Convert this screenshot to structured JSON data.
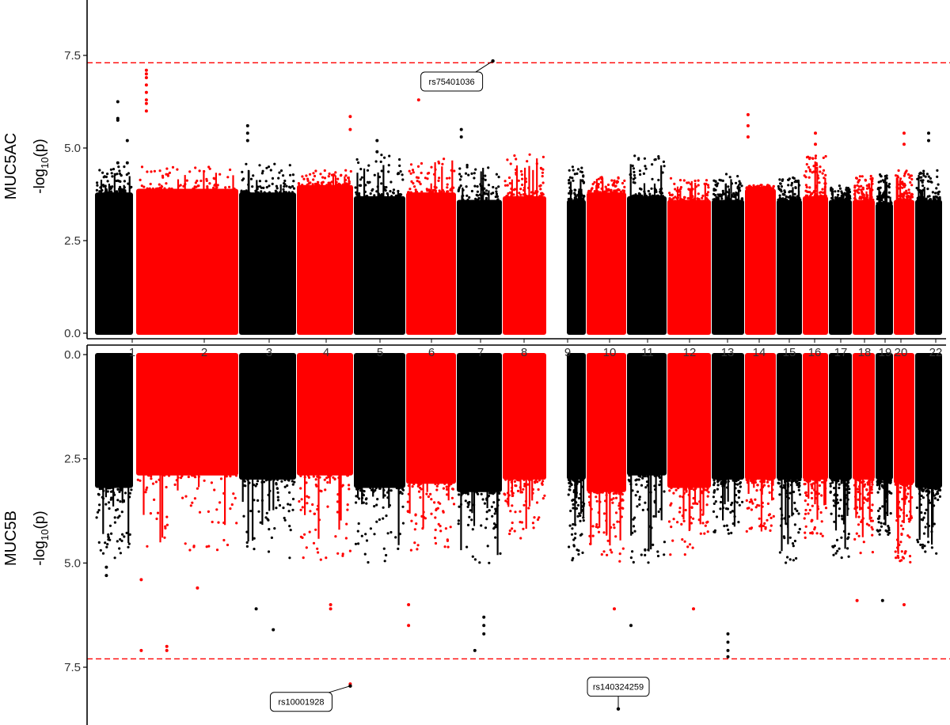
{
  "chart_data": {
    "type": "scatter",
    "subtype": "miami-manhattan",
    "colors": {
      "odd_chromosomes": "#000000",
      "even_chromosomes": "#ff0000",
      "threshold": "#ff0000"
    },
    "chromosomes": [
      "1",
      "2",
      "3",
      "4",
      "5",
      "6",
      "7",
      "8",
      "9",
      "10",
      "11",
      "12",
      "13",
      "14",
      "15",
      "16",
      "17",
      "18",
      "19",
      "20",
      "22"
    ],
    "significance_threshold": 7.3,
    "panels": [
      {
        "name": "MUC5AC",
        "ylabel_prefix": "-log",
        "ylabel_sub": "10",
        "ylabel_suffix": "(p)",
        "orientation": "up",
        "ylim": [
          0,
          9
        ],
        "yticks": [
          "0.0",
          "2.5",
          "5.0",
          "7.5"
        ],
        "background_top": [
          3.8,
          3.9,
          3.8,
          4.0,
          3.7,
          3.8,
          3.6,
          3.7,
          3.6,
          3.8,
          3.7,
          3.6,
          3.6,
          3.9,
          3.6,
          3.7,
          3.6,
          3.6,
          3.5,
          3.6,
          3.6
        ],
        "background_max": [
          4.5,
          4.5,
          4.6,
          4.4,
          4.9,
          4.8,
          4.6,
          4.9,
          4.5,
          4.3,
          4.8,
          4.2,
          4.3,
          4.0,
          4.2,
          4.8,
          4.0,
          4.3,
          4.3,
          4.4,
          4.4
        ],
        "peaks": [
          {
            "chr": "1",
            "pos": 0.6,
            "values": [
              6.25,
              5.8,
              5.75,
              4.6
            ]
          },
          {
            "chr": "1",
            "pos": 0.85,
            "values": [
              5.2,
              4.6
            ]
          },
          {
            "chr": "2",
            "pos": 0.1,
            "values": [
              7.1,
              7.0,
              6.9,
              6.7,
              6.5,
              6.3,
              6.2,
              6.0
            ]
          },
          {
            "chr": "3",
            "pos": 0.15,
            "values": [
              5.6,
              5.4,
              5.2
            ]
          },
          {
            "chr": "4",
            "pos": 0.95,
            "values": [
              5.85,
              5.5
            ]
          },
          {
            "chr": "5",
            "pos": 0.45,
            "values": [
              5.2,
              4.9
            ]
          },
          {
            "chr": "6",
            "pos": 0.25,
            "values": [
              6.3
            ]
          },
          {
            "chr": "7",
            "pos": 0.8,
            "values": [
              7.35
            ]
          },
          {
            "chr": "7",
            "pos": 0.1,
            "values": [
              5.5,
              5.3
            ]
          },
          {
            "chr": "14",
            "pos": 0.1,
            "values": [
              5.9,
              5.6,
              5.3
            ]
          },
          {
            "chr": "16",
            "pos": 0.5,
            "values": [
              5.4,
              5.1
            ]
          },
          {
            "chr": "20",
            "pos": 0.5,
            "values": [
              5.4,
              5.1
            ]
          },
          {
            "chr": "22",
            "pos": 0.5,
            "values": [
              5.4,
              5.2
            ]
          }
        ],
        "annotations": [
          {
            "label": "rs75401036",
            "chr": "7",
            "pos": 0.8,
            "value": 7.35
          }
        ]
      },
      {
        "name": "MUC5B",
        "ylabel_prefix": "-log",
        "ylabel_sub": "10",
        "ylabel_suffix": "(p)",
        "orientation": "down",
        "ylim": [
          0,
          9
        ],
        "yticks": [
          "0.0",
          "2.5",
          "5.0",
          "7.5"
        ],
        "background_top": [
          3.2,
          2.9,
          3.0,
          2.9,
          3.2,
          3.1,
          3.3,
          3.0,
          3.0,
          3.3,
          2.9,
          3.2,
          3.0,
          3.0,
          3.0,
          3.0,
          3.0,
          3.0,
          3.0,
          3.1,
          3.2
        ],
        "background_max": [
          4.9,
          4.7,
          4.9,
          5.0,
          5.0,
          4.8,
          5.0,
          4.6,
          5.0,
          5.0,
          5.0,
          4.8,
          4.3,
          4.4,
          5.0,
          4.4,
          4.9,
          4.8,
          4.4,
          5.0,
          4.8
        ],
        "peaks": [
          {
            "chr": "1",
            "pos": 0.3,
            "values": [
              5.3,
              5.1
            ]
          },
          {
            "chr": "2",
            "pos": 0.05,
            "values": [
              7.1,
              5.4
            ]
          },
          {
            "chr": "2",
            "pos": 0.3,
            "values": [
              7.1,
              7.0
            ]
          },
          {
            "chr": "2",
            "pos": 0.6,
            "values": [
              5.6
            ]
          },
          {
            "chr": "3",
            "pos": 0.3,
            "values": [
              6.1
            ]
          },
          {
            "chr": "3",
            "pos": 0.6,
            "values": [
              6.6
            ]
          },
          {
            "chr": "4",
            "pos": 0.95,
            "values": [
              7.95,
              7.9
            ]
          },
          {
            "chr": "4",
            "pos": 0.6,
            "values": [
              6.1,
              6.0
            ]
          },
          {
            "chr": "6",
            "pos": 0.05,
            "values": [
              6.5,
              6.0
            ]
          },
          {
            "chr": "7",
            "pos": 0.4,
            "values": [
              7.1
            ]
          },
          {
            "chr": "7",
            "pos": 0.6,
            "values": [
              6.7,
              6.5,
              6.3
            ]
          },
          {
            "chr": "10",
            "pos": 0.7,
            "values": [
              6.1
            ]
          },
          {
            "chr": "11",
            "pos": 0.1,
            "values": [
              6.5
            ]
          },
          {
            "chr": "12",
            "pos": 0.6,
            "values": [
              6.1
            ]
          },
          {
            "chr": "13",
            "pos": 0.5,
            "values": [
              7.25,
              7.1,
              6.9,
              6.7
            ]
          },
          {
            "chr": "18",
            "pos": 0.2,
            "values": [
              5.9
            ]
          },
          {
            "chr": "19",
            "pos": 0.4,
            "values": [
              5.9
            ]
          },
          {
            "chr": "20",
            "pos": 0.5,
            "values": [
              6.0
            ]
          }
        ],
        "annotations": [
          {
            "label": "rs10001928",
            "chr": "4",
            "pos": 0.95,
            "value": 7.95
          },
          {
            "label": "rs140324259",
            "chr": "10",
            "pos": 0.8,
            "value": 8.5
          }
        ]
      }
    ]
  }
}
